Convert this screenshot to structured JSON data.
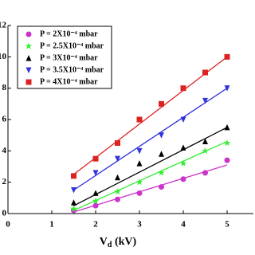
{
  "chart_data": {
    "type": "scatter",
    "x_label": {
      "main": "V",
      "sub": "d",
      "rest": " (kV)"
    },
    "x": [
      1.5,
      2,
      2.5,
      3,
      3.5,
      4,
      4.5,
      5
    ],
    "fit_x": [
      1.5,
      5
    ],
    "series": [
      {
        "name": "P = 2X10⁻⁴ mbar",
        "color": "#cc33cc",
        "marker": "circle",
        "values": [
          0.2,
          0.5,
          0.9,
          1.3,
          1.7,
          2.2,
          2.6,
          3.4
        ],
        "fit": [
          0.1,
          3.1
        ]
      },
      {
        "name": "P = 2.5X10⁻⁴ mbar",
        "color": "#33ee33",
        "marker": "star",
        "values": [
          0.3,
          0.8,
          1.4,
          2.0,
          2.6,
          3.2,
          4.0,
          4.5
        ],
        "fit": [
          0.2,
          4.6
        ]
      },
      {
        "name": "P = 3X10⁻⁴ mbar",
        "color": "#000000",
        "marker": "triangle-up",
        "values": [
          0.7,
          1.3,
          2.3,
          3.2,
          3.8,
          4.2,
          4.6,
          5.5
        ],
        "fit": [
          0.5,
          5.5
        ]
      },
      {
        "name": "P = 3.5X10⁻⁴ mbar",
        "color": "#3333dd",
        "marker": "triangle-down",
        "values": [
          1.5,
          2.6,
          3.5,
          4.0,
          5.0,
          6.0,
          7.2,
          8.0
        ],
        "fit": [
          1.5,
          8.0
        ]
      },
      {
        "name": "P = 4X10⁻⁴ mbar",
        "color": "#dd2222",
        "marker": "square",
        "values": [
          2.4,
          3.5,
          4.5,
          6.0,
          7.0,
          8.0,
          9.0,
          10.0
        ],
        "fit": [
          2.5,
          10.0
        ]
      }
    ],
    "xlim": [
      0,
      5.6
    ],
    "xticks": [
      0,
      1,
      2,
      3,
      4,
      5
    ],
    "ylim": [
      0,
      12
    ],
    "yticks": [
      0,
      2,
      4,
      6,
      8,
      10,
      12
    ]
  }
}
